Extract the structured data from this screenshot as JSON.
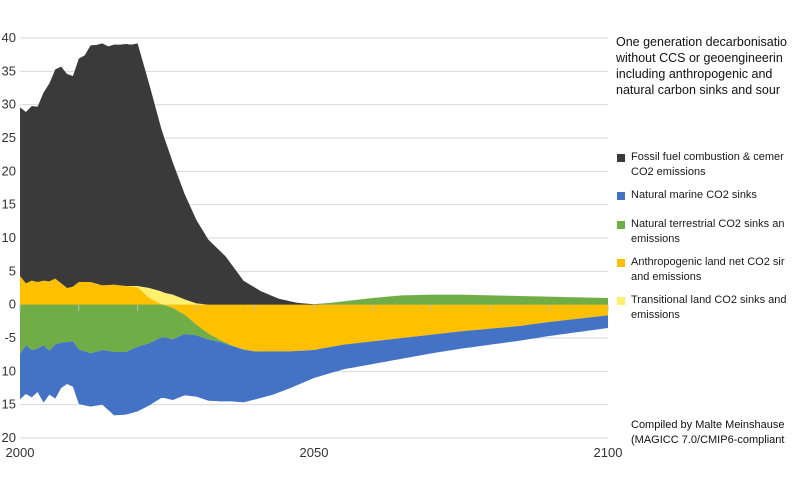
{
  "chart_data": {
    "type": "area",
    "title_lines": [
      "One generation decarbonisatio",
      "without CCS or geoengineerin",
      "including anthropogenic and",
      "natural carbon sinks and sour"
    ],
    "xlabel": "",
    "ylabel": "",
    "xlim": [
      2000,
      2100
    ],
    "ylim": [
      -20,
      40
    ],
    "x_ticks": [
      {
        "value": 2000,
        "label": "2000"
      },
      {
        "value": 2050,
        "label": "2050"
      },
      {
        "value": 2100,
        "label": "2100"
      }
    ],
    "y_ticks": [
      {
        "value": 40,
        "label": "40"
      },
      {
        "value": 35,
        "label": "35"
      },
      {
        "value": 30,
        "label": "30"
      },
      {
        "value": 25,
        "label": "25"
      },
      {
        "value": 20,
        "label": "20"
      },
      {
        "value": 15,
        "label": "15"
      },
      {
        "value": 10,
        "label": "10"
      },
      {
        "value": 5,
        "label": "5"
      },
      {
        "value": 0,
        "label": "0"
      },
      {
        "value": -5,
        "label": "-5"
      },
      {
        "value": -10,
        "label": "10"
      },
      {
        "value": -15,
        "label": "15"
      },
      {
        "value": -20,
        "label": "20"
      }
    ],
    "grid": true,
    "legend_position": "right",
    "series": [
      {
        "name_lines": [
          "Fossil fuel combustion & cemer",
          "CO2 emissions"
        ],
        "color": "#3a3a3a",
        "side": "positive",
        "x": [
          2000,
          2001,
          2002,
          2003,
          2004,
          2005,
          2006,
          2007,
          2008,
          2009,
          2010,
          2011,
          2012,
          2013,
          2014,
          2015,
          2016,
          2017,
          2018,
          2019,
          2020,
          2022,
          2024,
          2026,
          2028,
          2030,
          2032,
          2035,
          2038,
          2041,
          2044,
          2047,
          2050,
          2053,
          2056,
          2060,
          2065,
          2070,
          2075,
          2080,
          2085,
          2090,
          2095,
          2100
        ],
        "values": [
          25.3,
          25.7,
          26.2,
          26.3,
          28.2,
          29.7,
          31.4,
          32.5,
          32.1,
          31.6,
          33.5,
          34.0,
          35.5,
          35.8,
          36.3,
          35.8,
          36.0,
          36.1,
          36.3,
          36.2,
          36.4,
          30.5,
          24.5,
          19.8,
          15.8,
          12.5,
          9.8,
          7.2,
          3.6,
          2.0,
          0.9,
          0.3,
          0.05,
          0.0,
          0,
          0,
          0,
          0,
          0,
          0,
          0,
          0,
          0,
          0
        ]
      },
      {
        "name_lines": [
          "Natural marine CO2 sinks"
        ],
        "color": "#4472c4",
        "side": "negative",
        "x": [
          2000,
          2001,
          2002,
          2003,
          2004,
          2005,
          2006,
          2007,
          2008,
          2009,
          2010,
          2012,
          2014,
          2016,
          2018,
          2020,
          2022,
          2024,
          2026,
          2028,
          2030,
          2032,
          2034,
          2036,
          2038,
          2040,
          2043,
          2046,
          2050,
          2055,
          2060,
          2065,
          2070,
          2075,
          2080,
          2085,
          2090,
          2095,
          2100
        ],
        "values": [
          6.8,
          7.3,
          7.1,
          6.5,
          8.6,
          6.6,
          8.1,
          6.8,
          6.3,
          6.8,
          8.2,
          8.0,
          8.2,
          9.5,
          9.4,
          9.7,
          9.3,
          9.1,
          9.1,
          9.2,
          9.2,
          9.2,
          8.9,
          8.3,
          7.9,
          7.2,
          6.5,
          5.5,
          4.2,
          3.7,
          3.4,
          3.1,
          2.8,
          2.6,
          2.4,
          2.2,
          2.1,
          2.0,
          1.9
        ]
      },
      {
        "name_lines": [
          "Natural terrestrial CO2 sinks an",
          "emissions"
        ],
        "color": "#70ad47",
        "side": "both",
        "x": [
          2000,
          2001,
          2002,
          2003,
          2004,
          2005,
          2006,
          2007,
          2008,
          2009,
          2010,
          2012,
          2014,
          2016,
          2018,
          2020,
          2022,
          2024,
          2026,
          2028,
          2030,
          2032,
          2034,
          2036,
          2038,
          2040,
          2043,
          2046,
          2048,
          2050,
          2052,
          2055,
          2060,
          2065,
          2070,
          2075,
          2080,
          2085,
          2090,
          2095,
          2100
        ],
        "values": [
          -7.4,
          -6.1,
          -6.8,
          -6.6,
          -6.1,
          -6.9,
          -6.0,
          -5.7,
          -5.6,
          -5.5,
          -6.7,
          -7.3,
          -6.8,
          -7.1,
          -7.1,
          -6.3,
          -5.8,
          -4.9,
          -4.7,
          -2.9,
          -1.6,
          -0.9,
          -0.3,
          -0.1,
          -0.05,
          -0.02,
          -0.01,
          0,
          0,
          0,
          0.2,
          0.5,
          1.0,
          1.4,
          1.5,
          1.5,
          1.4,
          1.3,
          1.2,
          1.1,
          1.0
        ]
      },
      {
        "name_lines": [
          "Anthropogenic land net CO2 sir",
          "and emissions"
        ],
        "color": "#ffc000",
        "side": "both",
        "x": [
          2000,
          2001,
          2002,
          2003,
          2004,
          2005,
          2006,
          2007,
          2008,
          2009,
          2010,
          2012,
          2014,
          2016,
          2018,
          2020,
          2022,
          2024,
          2026,
          2028,
          2030,
          2032,
          2034,
          2036,
          2038,
          2040,
          2043,
          2046,
          2050,
          2055,
          2060,
          2065,
          2070,
          2075,
          2080,
          2085,
          2090,
          2095,
          2100
        ],
        "values": [
          4.3,
          3.2,
          3.6,
          3.4,
          3.6,
          3.5,
          3.9,
          3.2,
          2.5,
          2.7,
          3.4,
          3.4,
          2.9,
          3.0,
          2.8,
          2.6,
          1.0,
          0.1,
          -0.5,
          -1.5,
          -3.0,
          -4.3,
          -5.3,
          -6.1,
          -6.7,
          -7.0,
          -7.0,
          -7.0,
          -6.8,
          -6.0,
          -5.5,
          -5.0,
          -4.5,
          -4.0,
          -3.6,
          -3.2,
          -2.6,
          -2.1,
          -1.6
        ]
      },
      {
        "name_lines": [
          "Transitional land CO2 sinks and",
          "emissions"
        ],
        "color": "#ffef6e",
        "side": "both",
        "x": [
          2000,
          2016,
          2018,
          2020,
          2022,
          2024,
          2026,
          2028,
          2030,
          2032,
          2034,
          2036,
          2038,
          2040,
          2100
        ],
        "values": [
          0,
          0,
          0,
          0.2,
          1.5,
          1.9,
          1.5,
          0.8,
          0.2,
          0.0,
          0,
          0,
          0,
          0,
          0
        ]
      }
    ],
    "annotation_lines": [
      "Compiled by Malte Meinshause",
      "(MAGICC 7.0/CMIP6-compliant"
    ]
  }
}
